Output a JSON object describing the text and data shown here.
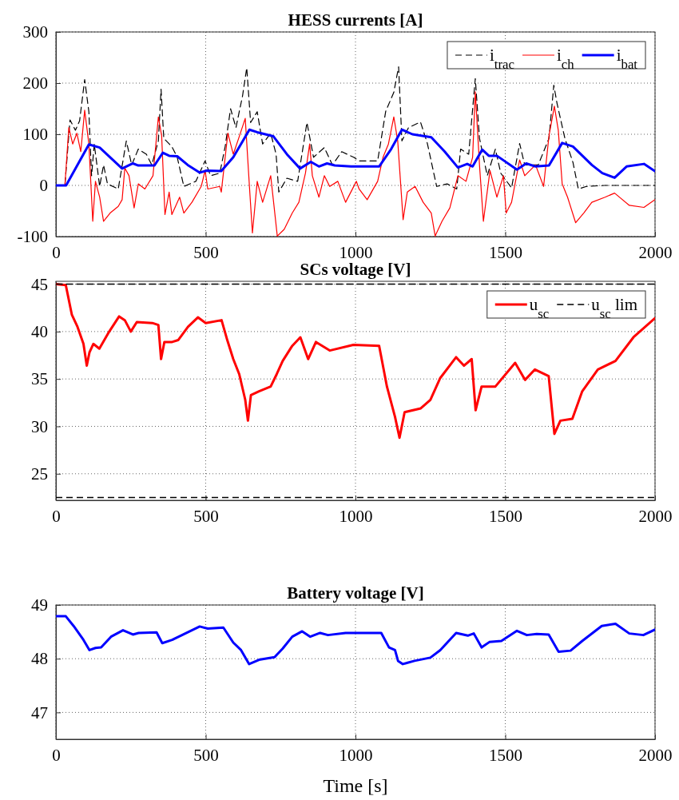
{
  "chart_data": [
    {
      "type": "line",
      "title": "HESS currents [A]",
      "xlim": [
        0,
        2000
      ],
      "xticks": [
        0,
        500,
        1000,
        1500,
        2000
      ],
      "ylim": [
        -100,
        300
      ],
      "yticks": [
        -100,
        0,
        100,
        200,
        300
      ],
      "grid": true,
      "legend": "top right",
      "series": [
        {
          "name": "i$_{trac}$",
          "color": "#000000",
          "line_style": "dashed",
          "x": [
            0,
            30,
            47,
            65,
            79,
            96,
            110,
            119,
            128,
            146,
            159,
            172,
            208,
            235,
            253,
            275,
            302,
            320,
            342,
            351,
            360,
            387,
            405,
            427,
            467,
            498,
            516,
            547,
            565,
            583,
            601,
            623,
            637,
            650,
            672,
            690,
            717,
            735,
            744,
            771,
            807,
            838,
            860,
            896,
            923,
            954,
            994,
            1012,
            1074,
            1101,
            1128,
            1144,
            1155,
            1177,
            1217,
            1240,
            1271,
            1306,
            1338,
            1351,
            1378,
            1400,
            1414,
            1440,
            1467,
            1485,
            1521,
            1548,
            1565,
            1610,
            1646,
            1662,
            1673,
            1699,
            1726,
            1744,
            1771,
            1833,
            1999
          ],
          "values": [
            0,
            0,
            128,
            108,
            126,
            207,
            144,
            19,
            81,
            -2,
            40,
            3,
            -7,
            87,
            40,
            71,
            61,
            40,
            87,
            188,
            92,
            76,
            55,
            -2,
            8,
            48,
            19,
            24,
            76,
            150,
            113,
            175,
            230,
            123,
            144,
            81,
            102,
            61,
            -13,
            14,
            8,
            123,
            55,
            74,
            40,
            66,
            55,
            48,
            48,
            145,
            182,
            232,
            87,
            113,
            124,
            82,
            -2,
            3,
            -7,
            71,
            61,
            209,
            92,
            19,
            71,
            24,
            -5,
            82,
            40,
            40,
            92,
            196,
            160,
            92,
            45,
            -7,
            -2,
            0,
            0
          ]
        },
        {
          "name": "i$_{ch}$",
          "color": "#ff0000",
          "line_style": "solid",
          "x": [
            0,
            30,
            43,
            56,
            70,
            83,
            96,
            110,
            123,
            132,
            146,
            159,
            181,
            208,
            221,
            230,
            244,
            261,
            275,
            297,
            324,
            342,
            353,
            364,
            378,
            387,
            413,
            427,
            454,
            485,
            498,
            507,
            547,
            552,
            574,
            592,
            610,
            632,
            646,
            656,
            672,
            690,
            717,
            739,
            762,
            789,
            811,
            833,
            847,
            856,
            878,
            896,
            914,
            941,
            967,
            1003,
            1012,
            1039,
            1074,
            1092,
            1110,
            1128,
            1141,
            1159,
            1173,
            1199,
            1226,
            1253,
            1266,
            1289,
            1315,
            1342,
            1369,
            1391,
            1400,
            1414,
            1427,
            1449,
            1472,
            1494,
            1503,
            1521,
            1548,
            1565,
            1601,
            1628,
            1646,
            1664,
            1677,
            1690,
            1708,
            1735,
            1762,
            1789,
            1833,
            1865,
            1914,
            1963,
            1999
          ],
          "values": [
            0,
            0,
            113,
            81,
            102,
            66,
            147,
            81,
            -70,
            8,
            -23,
            -70,
            -54,
            -41,
            -28,
            34,
            19,
            -44,
            3,
            -7,
            19,
            134,
            97,
            -57,
            -13,
            -57,
            -23,
            -54,
            -33,
            -2,
            29,
            -7,
            -2,
            -13,
            102,
            61,
            92,
            131,
            -2,
            -93,
            8,
            -33,
            19,
            -99,
            -86,
            -54,
            -33,
            24,
            81,
            19,
            -23,
            19,
            -2,
            8,
            -33,
            8,
            -7,
            -28,
            8,
            55,
            81,
            134,
            87,
            -67,
            -13,
            -2,
            -33,
            -54,
            -99,
            -70,
            -44,
            19,
            8,
            55,
            183,
            40,
            -70,
            29,
            -23,
            19,
            -54,
            -33,
            50,
            19,
            40,
            -2,
            97,
            155,
            108,
            3,
            -23,
            -73,
            -54,
            -33,
            -23,
            -15,
            -39,
            -43,
            -28
          ]
        },
        {
          "name": "i$_{bat}$",
          "color": "#0000ff",
          "line_style": "solid",
          "x": [
            0,
            34,
            110,
            146,
            221,
            257,
            275,
            329,
            357,
            378,
            405,
            440,
            480,
            503,
            552,
            592,
            646,
            672,
            726,
            771,
            815,
            851,
            878,
            905,
            931,
            985,
            1079,
            1119,
            1155,
            1190,
            1253,
            1298,
            1342,
            1373,
            1391,
            1423,
            1445,
            1472,
            1539,
            1570,
            1601,
            1646,
            1690,
            1726,
            1789,
            1824,
            1865,
            1905,
            1963,
            1999
          ],
          "values": [
            0,
            0,
            80,
            74,
            33,
            43,
            39,
            39,
            64,
            58,
            57,
            40,
            25,
            29,
            28,
            55,
            109,
            104,
            96,
            61,
            33,
            46,
            37,
            43,
            39,
            37,
            37,
            71,
            109,
            100,
            94,
            66,
            35,
            42,
            37,
            70,
            58,
            58,
            31,
            43,
            37,
            39,
            83,
            76,
            40,
            24,
            15,
            37,
            42,
            28
          ]
        }
      ]
    },
    {
      "type": "line",
      "title": "SCs voltage [V]",
      "xlim": [
        0,
        2000
      ],
      "xticks": [
        0,
        500,
        1000,
        1500,
        2000
      ],
      "ylim": [
        22.2,
        45.3
      ],
      "yticks": [
        25,
        30,
        35,
        40,
        45
      ],
      "grid": true,
      "legend": "top right",
      "series": [
        {
          "name": "u$_{sc}$",
          "color": "#ff0000",
          "line_style": "solid",
          "x": [
            0,
            33,
            53,
            72,
            92,
            103,
            112,
            125,
            145,
            178,
            211,
            230,
            250,
            270,
            322,
            342,
            351,
            362,
            388,
            408,
            441,
            474,
            500,
            553,
            572,
            592,
            612,
            632,
            641,
            651,
            678,
            717,
            737,
            757,
            789,
            816,
            842,
            868,
            914,
            993,
            1079,
            1105,
            1132,
            1147,
            1164,
            1218,
            1250,
            1283,
            1336,
            1362,
            1388,
            1401,
            1421,
            1467,
            1533,
            1566,
            1599,
            1645,
            1664,
            1684,
            1724,
            1757,
            1809,
            1868,
            1928,
            1999
          ],
          "values": [
            45,
            44.9,
            41.8,
            40.5,
            38.7,
            36.4,
            37.8,
            38.7,
            38.2,
            40,
            41.6,
            41.2,
            40,
            41,
            40.9,
            40.7,
            37.1,
            38.9,
            38.9,
            39.1,
            40.5,
            41.5,
            40.9,
            41.2,
            39.1,
            37.1,
            35.5,
            32.8,
            30.6,
            33.3,
            33.7,
            34.2,
            35.5,
            36.9,
            38.5,
            39.4,
            37.1,
            38.9,
            38,
            38.6,
            38.5,
            34.2,
            31,
            28.8,
            31.5,
            31.9,
            32.8,
            35.1,
            37.3,
            36.4,
            37.1,
            31.7,
            34.2,
            34.2,
            36.7,
            34.9,
            36,
            35.3,
            29.2,
            30.6,
            30.8,
            33.7,
            36,
            36.9,
            39.4,
            41.4
          ]
        },
        {
          "name": "u$_{sc}$ lim",
          "color": "#000000",
          "line_style": "dashed",
          "x": [
            0,
            2000
          ],
          "values": [
            45,
            45
          ]
        }
      ],
      "ref_lines": [
        {
          "axis": "y",
          "value": 22.5,
          "color": "#000000",
          "line_style": "dashed"
        }
      ]
    },
    {
      "type": "line",
      "title": "Battery voltage [V]",
      "xlabel": "Time [s]",
      "xlim": [
        0,
        2000
      ],
      "xticks": [
        0,
        500,
        1000,
        1500,
        2000
      ],
      "ylim": [
        46.5,
        49
      ],
      "yticks": [
        47,
        48,
        49
      ],
      "grid": true,
      "series": [
        {
          "color": "#0000ff",
          "line_style": "solid",
          "x": [
            0,
            33,
            59,
            92,
            112,
            132,
            151,
            184,
            224,
            257,
            276,
            336,
            355,
            388,
            421,
            480,
            507,
            559,
            592,
            618,
            645,
            678,
            730,
            757,
            789,
            822,
            849,
            882,
            908,
            967,
            1086,
            1112,
            1132,
            1142,
            1158,
            1197,
            1250,
            1283,
            1336,
            1375,
            1395,
            1421,
            1447,
            1487,
            1539,
            1572,
            1605,
            1645,
            1678,
            1718,
            1757,
            1822,
            1868,
            1914,
            1961,
            1999
          ],
          "values": [
            48.79,
            48.79,
            48.61,
            48.35,
            48.16,
            48.2,
            48.21,
            48.41,
            48.53,
            48.45,
            48.48,
            48.49,
            48.29,
            48.35,
            48.44,
            48.6,
            48.56,
            48.58,
            48.3,
            48.16,
            47.9,
            47.98,
            48.03,
            48.19,
            48.41,
            48.51,
            48.41,
            48.48,
            48.44,
            48.48,
            48.48,
            48.21,
            48.16,
            47.96,
            47.9,
            47.96,
            48.02,
            48.16,
            48.48,
            48.43,
            48.47,
            48.21,
            48.31,
            48.33,
            48.52,
            48.44,
            48.46,
            48.45,
            48.13,
            48.15,
            48.33,
            48.61,
            48.65,
            48.47,
            48.44,
            48.54
          ]
        }
      ]
    }
  ]
}
